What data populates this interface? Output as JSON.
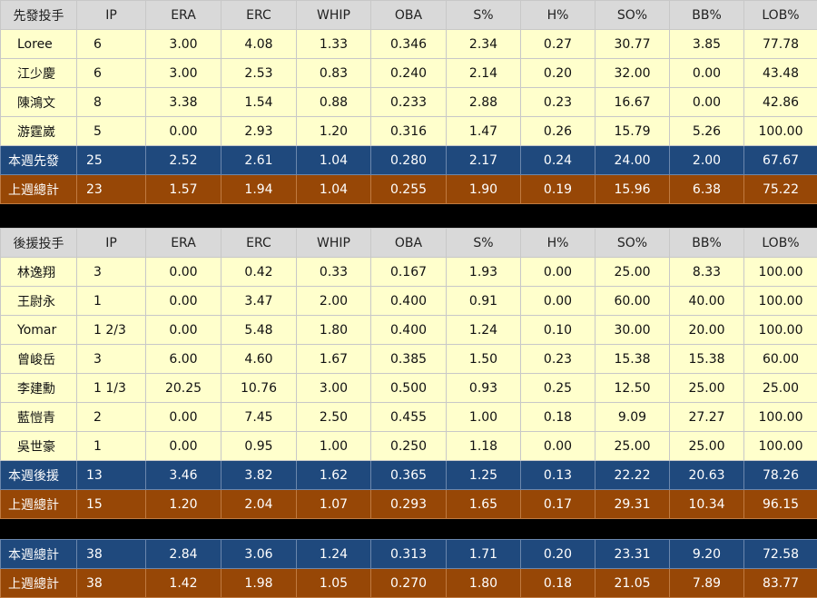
{
  "columns": [
    "IP",
    "ERA",
    "ERC",
    "WHIP",
    "OBA",
    "S%",
    "H%",
    "SO%",
    "BB%",
    "LOB%"
  ],
  "starters": {
    "header": "先發投手",
    "rows": [
      {
        "name": "Loree",
        "v": [
          "6",
          "3.00",
          "4.08",
          "1.33",
          "0.346",
          "2.34",
          "0.27",
          "30.77",
          "3.85",
          "77.78"
        ]
      },
      {
        "name": "江少慶",
        "v": [
          "6",
          "3.00",
          "2.53",
          "0.83",
          "0.240",
          "2.14",
          "0.20",
          "32.00",
          "0.00",
          "43.48"
        ]
      },
      {
        "name": "陳鴻文",
        "v": [
          "8",
          "3.38",
          "1.54",
          "0.88",
          "0.233",
          "2.88",
          "0.23",
          "16.67",
          "0.00",
          "42.86"
        ]
      },
      {
        "name": "游霆崴",
        "v": [
          "5",
          "0.00",
          "2.93",
          "1.20",
          "0.316",
          "1.47",
          "0.26",
          "15.79",
          "5.26",
          "100.00"
        ]
      }
    ],
    "this_week": {
      "name": "本週先發",
      "v": [
        "25",
        "2.52",
        "2.61",
        "1.04",
        "0.280",
        "2.17",
        "0.24",
        "24.00",
        "2.00",
        "67.67"
      ]
    },
    "last_week": {
      "name": "上週總計",
      "v": [
        "23",
        "1.57",
        "1.94",
        "1.04",
        "0.255",
        "1.90",
        "0.19",
        "15.96",
        "6.38",
        "75.22"
      ]
    }
  },
  "relievers": {
    "header": "後援投手",
    "rows": [
      {
        "name": "林逸翔",
        "v": [
          "3",
          "0.00",
          "0.42",
          "0.33",
          "0.167",
          "1.93",
          "0.00",
          "25.00",
          "8.33",
          "100.00"
        ]
      },
      {
        "name": "王尉永",
        "v": [
          "1",
          "0.00",
          "3.47",
          "2.00",
          "0.400",
          "0.91",
          "0.00",
          "60.00",
          "40.00",
          "100.00"
        ]
      },
      {
        "name": "Yomar",
        "v": [
          "1 2/3",
          "0.00",
          "5.48",
          "1.80",
          "0.400",
          "1.24",
          "0.10",
          "30.00",
          "20.00",
          "100.00"
        ]
      },
      {
        "name": "曾峻岳",
        "v": [
          "3",
          "6.00",
          "4.60",
          "1.67",
          "0.385",
          "1.50",
          "0.23",
          "15.38",
          "15.38",
          "60.00"
        ]
      },
      {
        "name": "李建勳",
        "v": [
          "1 1/3",
          "20.25",
          "10.76",
          "3.00",
          "0.500",
          "0.93",
          "0.25",
          "12.50",
          "25.00",
          "25.00"
        ]
      },
      {
        "name": "藍愷青",
        "v": [
          "2",
          "0.00",
          "7.45",
          "2.50",
          "0.455",
          "1.00",
          "0.18",
          "9.09",
          "27.27",
          "100.00"
        ]
      },
      {
        "name": "吳世豪",
        "v": [
          "1",
          "0.00",
          "0.95",
          "1.00",
          "0.250",
          "1.18",
          "0.00",
          "25.00",
          "25.00",
          "100.00"
        ]
      }
    ],
    "this_week": {
      "name": "本週後援",
      "v": [
        "13",
        "3.46",
        "3.82",
        "1.62",
        "0.365",
        "1.25",
        "0.13",
        "22.22",
        "20.63",
        "78.26"
      ]
    },
    "last_week": {
      "name": "上週總計",
      "v": [
        "15",
        "1.20",
        "2.04",
        "1.07",
        "0.293",
        "1.65",
        "0.17",
        "29.31",
        "10.34",
        "96.15"
      ]
    }
  },
  "totals": {
    "this_week": {
      "name": "本週總計",
      "v": [
        "38",
        "2.84",
        "3.06",
        "1.24",
        "0.313",
        "1.71",
        "0.20",
        "23.31",
        "9.20",
        "72.58"
      ]
    },
    "last_week": {
      "name": "上週總計",
      "v": [
        "38",
        "1.42",
        "1.98",
        "1.05",
        "0.270",
        "1.80",
        "0.18",
        "21.05",
        "7.89",
        "83.77"
      ]
    }
  }
}
